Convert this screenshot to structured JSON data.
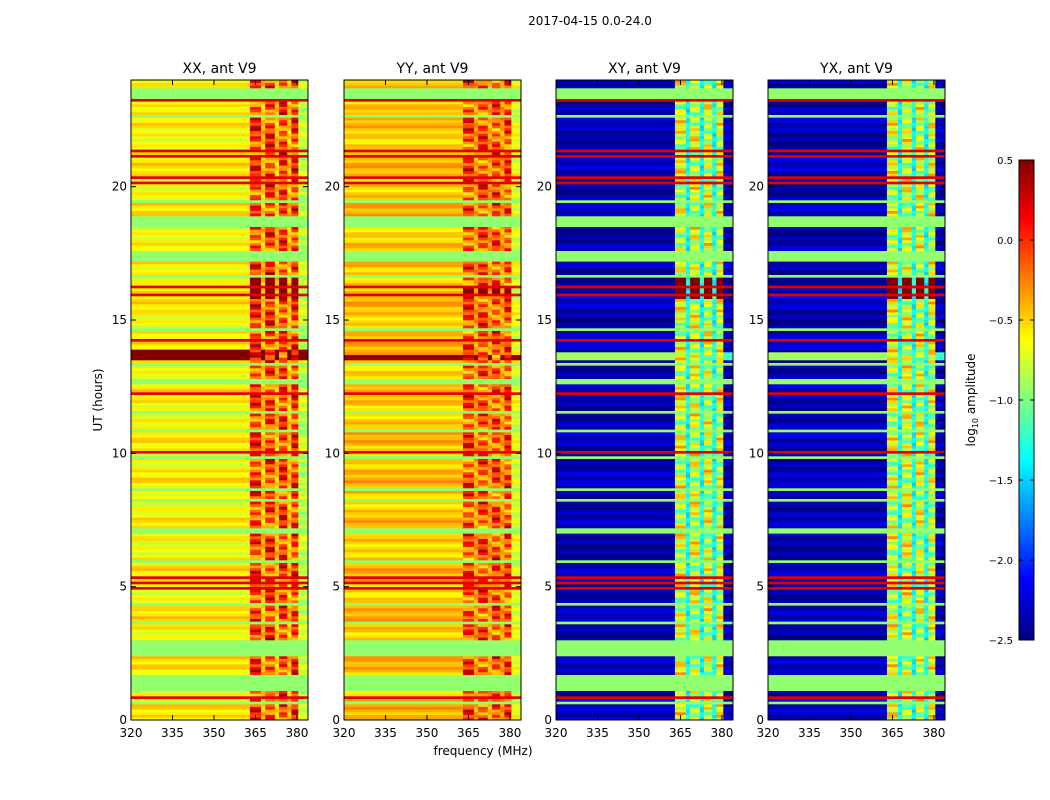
{
  "suptitle": "2017-04-15 0.0-24.0",
  "chart_data": {
    "type": "heatmap",
    "xlabel": "frequency (MHz)",
    "ylabel": "UT (hours)",
    "xlim": [
      320,
      384
    ],
    "ylim": [
      0,
      24
    ],
    "xticks": [
      "320",
      "335",
      "350",
      "365",
      "380"
    ],
    "xtick_values": [
      320,
      335,
      350,
      365,
      380
    ],
    "yticks": [
      "0",
      "5",
      "10",
      "15",
      "20"
    ],
    "ytick_values": [
      0,
      5,
      10,
      15,
      20
    ],
    "colorbar": {
      "label_main": "log",
      "label_sub": "10",
      "label_rest": " amplitude",
      "range": [
        -2.5,
        0.5
      ],
      "colormap": "jet",
      "ticks": [
        "0.5",
        "0.0",
        "−0.5",
        "−1.0",
        "−1.5",
        "−2.0",
        "−2.5"
      ],
      "tick_values": [
        0.5,
        0.0,
        -0.5,
        -1.0,
        -1.5,
        -2.0,
        -2.5
      ]
    },
    "freq_segments": [
      {
        "range": [
          320,
          363
        ],
        "kind": "bg"
      },
      {
        "range": [
          363,
          367
        ],
        "kind": "rfi"
      },
      {
        "range": [
          367,
          368.5
        ],
        "kind": "gap"
      },
      {
        "range": [
          368.5,
          372
        ],
        "kind": "rfi"
      },
      {
        "range": [
          372,
          373.5
        ],
        "kind": "gap"
      },
      {
        "range": [
          373.5,
          376.5
        ],
        "kind": "rfi"
      },
      {
        "range": [
          376.5,
          378
        ],
        "kind": "gap"
      },
      {
        "range": [
          378,
          380.5
        ],
        "kind": "rfi"
      },
      {
        "range": [
          380.5,
          384
        ],
        "kind": "edge"
      }
    ],
    "flagged_value": -0.95,
    "flagged_hours": [
      [
        23.3,
        23.7
      ],
      [
        22.6,
        22.7
      ],
      [
        19.4,
        19.5
      ],
      [
        18.5,
        18.9
      ],
      [
        17.2,
        17.6
      ],
      [
        16.6,
        16.7
      ],
      [
        14.6,
        14.7
      ],
      [
        13.3,
        13.4
      ],
      [
        12.6,
        12.8
      ],
      [
        11.5,
        11.6
      ],
      [
        10.8,
        10.9
      ],
      [
        9.8,
        9.9
      ],
      [
        8.6,
        8.7
      ],
      [
        8.2,
        8.3
      ],
      [
        7.0,
        7.2
      ],
      [
        5.9,
        6.0
      ],
      [
        4.3,
        4.4
      ],
      [
        3.6,
        3.7
      ],
      [
        2.4,
        3.0
      ],
      [
        1.1,
        1.7
      ],
      [
        0.6,
        0.7
      ]
    ],
    "rfi_lines_hours": [
      23.2,
      21.3,
      21.1,
      20.3,
      20.1,
      16.2,
      15.9,
      14.2,
      12.2,
      10.0,
      5.3,
      5.1,
      4.9,
      0.8
    ],
    "rfi_line_value": 0.2,
    "series": [
      {
        "name": "XX, ant V9",
        "bg": -0.6,
        "rfi": -0.05,
        "gap": -0.45,
        "edge": -0.8,
        "burst_hours": [
          13.5,
          13.9
        ],
        "burst_value": 0.5,
        "hot_hours": [
          15.8,
          16.6
        ],
        "hot_value": 0.45
      },
      {
        "name": "YY, ant V9",
        "bg": -0.45,
        "rfi": -0.1,
        "gap": -0.35,
        "edge": -0.7,
        "burst_hours": [
          13.5,
          13.7
        ],
        "burst_value": 0.45,
        "hot_hours": [
          15.9,
          16.3
        ],
        "hot_value": 0.45
      },
      {
        "name": "XY, ant V9",
        "bg": -2.35,
        "rfi": -0.75,
        "gap": -1.35,
        "edge": -2.35,
        "burst_hours": [
          13.5,
          13.8
        ],
        "burst_value": -1.2,
        "hot_hours": [
          15.8,
          16.6
        ],
        "hot_value": 0.5
      },
      {
        "name": "YX, ant V9",
        "bg": -2.35,
        "rfi": -0.75,
        "gap": -1.35,
        "edge": -2.35,
        "burst_hours": [
          13.5,
          13.8
        ],
        "burst_value": -1.2,
        "hot_hours": [
          15.8,
          16.6
        ],
        "hot_value": 0.5
      }
    ]
  }
}
